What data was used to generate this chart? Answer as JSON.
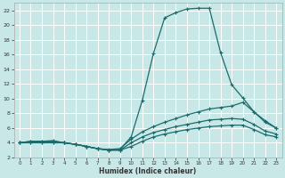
{
  "xlabel": "Humidex (Indice chaleur)",
  "bg_color": "#c8e8e8",
  "grid_color": "#ffffff",
  "line_color": "#1a6b6b",
  "xlim": [
    -0.5,
    23.5
  ],
  "ylim": [
    2,
    23
  ],
  "xticks": [
    0,
    1,
    2,
    3,
    4,
    5,
    6,
    7,
    8,
    9,
    10,
    11,
    12,
    13,
    14,
    15,
    16,
    17,
    18,
    19,
    20,
    21,
    22,
    23
  ],
  "yticks": [
    2,
    4,
    6,
    8,
    10,
    12,
    14,
    16,
    18,
    20,
    22
  ],
  "curve1_x": [
    0,
    1,
    2,
    3,
    4,
    5,
    6,
    7,
    8,
    9,
    10,
    11,
    12,
    13,
    14,
    15,
    16,
    17,
    18,
    19,
    20,
    21,
    22,
    23
  ],
  "curve1_y": [
    4.0,
    4.2,
    4.2,
    4.3,
    4.0,
    3.8,
    3.5,
    3.2,
    3.0,
    3.1,
    4.8,
    9.8,
    16.2,
    21.0,
    21.7,
    22.2,
    22.3,
    22.3,
    16.3,
    11.9,
    10.1,
    8.2,
    6.8,
    6.0
  ],
  "curve2_x": [
    0,
    1,
    2,
    3,
    4,
    5,
    6,
    7,
    8,
    9,
    10,
    11,
    12,
    13,
    14,
    15,
    16,
    17,
    18,
    19,
    20,
    21,
    22,
    23
  ],
  "curve2_y": [
    4.0,
    4.2,
    4.2,
    4.2,
    4.0,
    3.8,
    3.5,
    3.2,
    3.1,
    3.2,
    4.5,
    5.5,
    6.2,
    6.8,
    7.3,
    7.8,
    8.2,
    8.6,
    8.8,
    9.0,
    9.5,
    8.2,
    7.0,
    6.0
  ],
  "curve3_x": [
    0,
    1,
    2,
    3,
    4,
    5,
    6,
    7,
    8,
    9,
    10,
    11,
    12,
    13,
    14,
    15,
    16,
    17,
    18,
    19,
    20,
    21,
    22,
    23
  ],
  "curve3_y": [
    4.0,
    4.1,
    4.1,
    4.1,
    4.0,
    3.8,
    3.5,
    3.2,
    3.0,
    3.0,
    4.0,
    4.8,
    5.4,
    5.8,
    6.2,
    6.5,
    6.8,
    7.1,
    7.2,
    7.3,
    7.2,
    6.5,
    5.6,
    5.2
  ],
  "curve4_x": [
    0,
    1,
    2,
    3,
    4,
    5,
    6,
    7,
    8,
    9,
    10,
    11,
    12,
    13,
    14,
    15,
    16,
    17,
    18,
    19,
    20,
    21,
    22,
    23
  ],
  "curve4_y": [
    4.0,
    4.0,
    4.0,
    4.0,
    4.0,
    3.8,
    3.5,
    3.2,
    3.0,
    3.0,
    3.5,
    4.2,
    4.8,
    5.2,
    5.5,
    5.8,
    6.0,
    6.2,
    6.3,
    6.4,
    6.4,
    5.8,
    5.1,
    4.8
  ]
}
